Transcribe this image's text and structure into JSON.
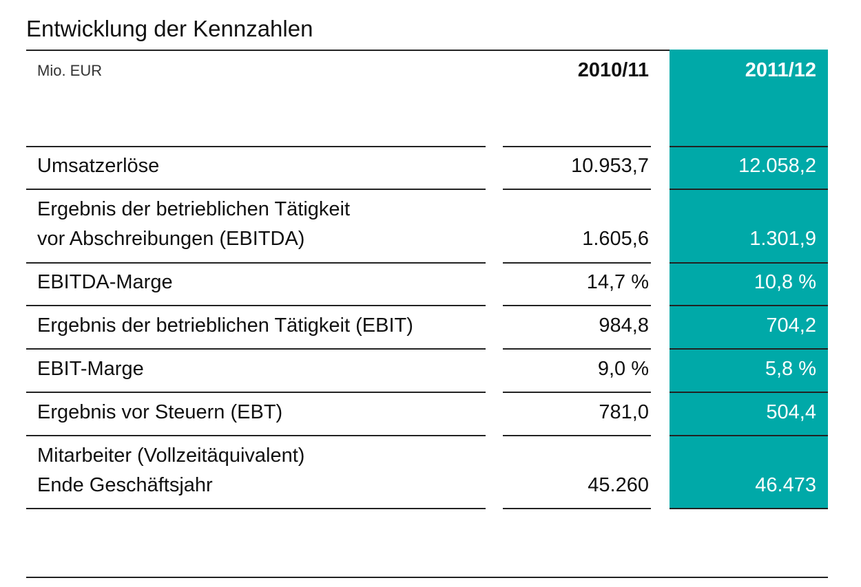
{
  "title": "Entwicklung der Kennzahlen",
  "unit": "Mio. EUR",
  "years": [
    "2010/11",
    "2011/12"
  ],
  "rows": [
    {
      "label": "Umsatzerlöse",
      "v2010": "10.953,7",
      "v2011": "12.058,2"
    },
    {
      "label1": "Ergebnis der betrieblichen Tätigkeit",
      "label2": "vor Abschreibungen (EBITDA)",
      "v2010": "1.605,6",
      "v2011": "1.301,9"
    },
    {
      "label": "EBITDA-Marge",
      "v2010": "14,7 %",
      "v2011": "10,8 %"
    },
    {
      "label": "Ergebnis der betrieblichen Tätigkeit (EBIT)",
      "v2010": "984,8",
      "v2011": "704,2"
    },
    {
      "label": "EBIT-Marge",
      "v2010": "9,0 %",
      "v2011": "5,8 %"
    },
    {
      "label": "Ergebnis vor Steuern (EBT)",
      "v2010": "781,0",
      "v2011": "504,4"
    },
    {
      "label1": "Mitarbeiter (Vollzeitäquivalent)",
      "label2": "Ende Geschäftsjahr",
      "v2010": "45.260",
      "v2011": "46.473"
    }
  ],
  "colors": {
    "highlight": "#00A9A8",
    "text": "#111111",
    "rule": "#222222"
  }
}
